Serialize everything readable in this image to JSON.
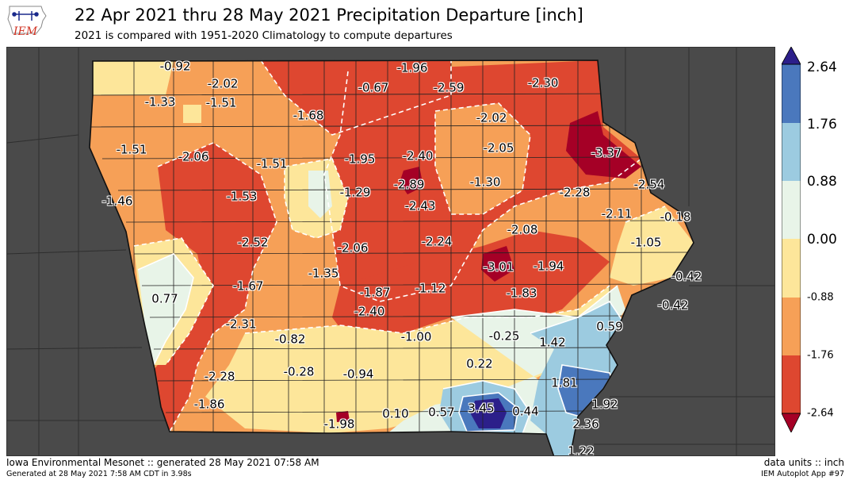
{
  "header": {
    "logo_text": "IEM",
    "title": "22 Apr 2021 thru 28 May 2021 Precipitation Departure [inch]",
    "subtitle": "2021 is compared with 1951-2020 Climatology to compute departures"
  },
  "map": {
    "labels": [
      "-0.92",
      "-1.96",
      "-2.02",
      "-0.67",
      "-2.59",
      "-2.30",
      "-1.33",
      "-1.51",
      "-1.68",
      "-2.02",
      "-1.51",
      "-2.06",
      "-1.51",
      "-1.95",
      "-2.40",
      "-2.05",
      "-3.37",
      "-2.89",
      "-1.30",
      "-2.28",
      "-2.54",
      "-1.46",
      "-1.53",
      "-1.29",
      "-2.43",
      "-2.11",
      "-0.18",
      "-2.08",
      "-2.52",
      "-2.06",
      "-2.24",
      "-1.05",
      "-3.01",
      "-1.94",
      "-0.42",
      "-1.35",
      "-1.67",
      "-1.87",
      "-1.12",
      "-1.83",
      "0.77",
      "-0.42",
      "-2.40",
      "0.59",
      "-2.31",
      "-0.82",
      "-1.00",
      "-0.25",
      "1.42",
      "0.22",
      "-0.28",
      "-0.94",
      "-2.28",
      "1.81",
      "-1.86",
      "1.92",
      "0.10",
      "0.57",
      "3.45",
      "0.44",
      "-1.98",
      "2.36",
      "1.22"
    ]
  },
  "colorbar": {
    "ticks": [
      "2.64",
      "1.76",
      "0.88",
      "0.00",
      "-0.88",
      "-1.76",
      "-2.64"
    ],
    "colors": [
      "#2c1f8a",
      "#4a78bd",
      "#9ccbe0",
      "#e8f4e8",
      "#fde69a",
      "#f6a057",
      "#de4730",
      "#a50026"
    ]
  },
  "footer": {
    "left_line1": "Iowa Environmental Mesonet :: generated 28 May 2021 07:58 AM",
    "left_line2": "Generated at 28 May 2021 7:58 AM CDT in 3.98s",
    "right_line1": "data units :: inch",
    "right_line2": "IEM Autoplot App #97"
  }
}
